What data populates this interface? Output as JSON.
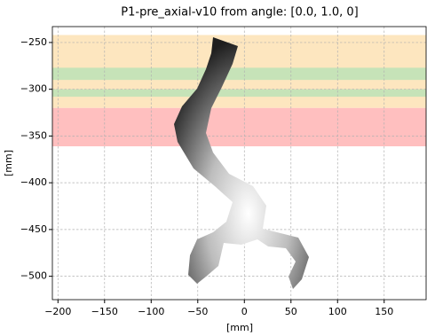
{
  "chart_data": {
    "type": "image",
    "title": "P1-pre_axial-v10 from angle: [0.0, 1.0, 0]",
    "x_label": "[mm]",
    "y_label": "[mm]",
    "xlim": [
      -206,
      195
    ],
    "ylim": [
      -525,
      -233
    ],
    "xticks": [
      {
        "value": -200,
        "label": "−200"
      },
      {
        "value": -150,
        "label": "−150"
      },
      {
        "value": -100,
        "label": "−100"
      },
      {
        "value": -50,
        "label": "−50"
      },
      0,
      50,
      100,
      150
    ],
    "yticks": [
      {
        "value": -250,
        "label": "−250"
      },
      {
        "value": -300,
        "label": "−300"
      },
      {
        "value": -350,
        "label": "−350"
      },
      {
        "value": -400,
        "label": "−400"
      },
      {
        "value": -450,
        "label": "−450"
      },
      {
        "value": -500,
        "label": "−500"
      }
    ],
    "grid": true,
    "bands": [
      {
        "range": [
          -320,
          -242
        ],
        "color": "#fde6bf"
      },
      {
        "range": [
          -290,
          -277
        ],
        "color": "#c6e3b8"
      },
      {
        "range": [
          -308,
          -300
        ],
        "color": "#c6e3b8"
      },
      {
        "range": [
          -361,
          -320
        ],
        "color": "#ffbfbf"
      }
    ]
  }
}
